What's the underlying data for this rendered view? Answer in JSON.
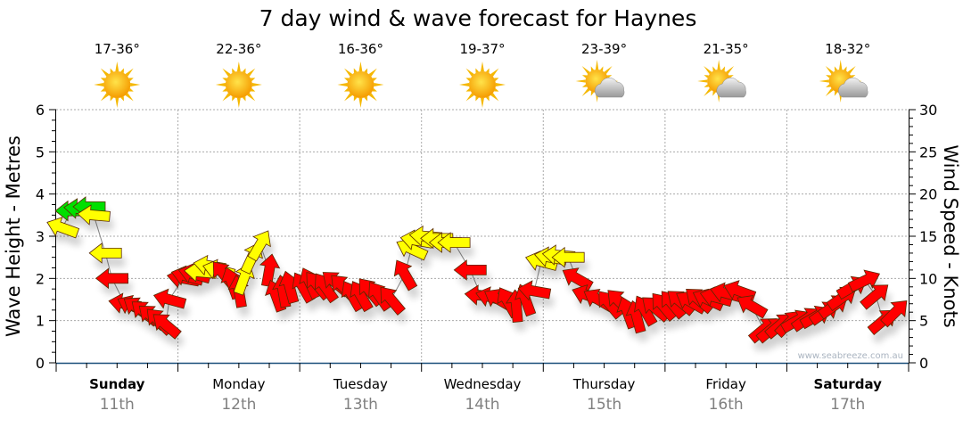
{
  "chart_data": {
    "type": "scatter",
    "title": "7 day wind & wave forecast for Haynes",
    "ylabel": "Wave Height - Metres",
    "y2label": "Wind Speed - Knots",
    "ylim": [
      0,
      6
    ],
    "y2lim": [
      0,
      30
    ],
    "yticks": [
      "0",
      "1",
      "2",
      "3",
      "4",
      "5",
      "6"
    ],
    "y2ticks": [
      "0",
      "5",
      "10",
      "15",
      "20",
      "25",
      "30"
    ],
    "watermark": "www.seabreeze.com.au",
    "colors": {
      "G": "#00e000",
      "Y": "#ffff00",
      "R": "#ff0000"
    },
    "days": [
      {
        "name": "Sunday",
        "date": "11th",
        "bold": true,
        "temp": "17-36°",
        "icon": "sun-icon"
      },
      {
        "name": "Monday",
        "date": "12th",
        "bold": false,
        "temp": "22-36°",
        "icon": "sun-icon"
      },
      {
        "name": "Tuesday",
        "date": "13th",
        "bold": false,
        "temp": "16-36°",
        "icon": "sun-icon"
      },
      {
        "name": "Wednesday",
        "date": "14th",
        "bold": false,
        "temp": "19-37°",
        "icon": "sun-icon"
      },
      {
        "name": "Thursday",
        "date": "15th",
        "bold": false,
        "temp": "23-39°",
        "icon": "partly-cloudy-icon"
      },
      {
        "name": "Friday",
        "date": "16th",
        "bold": false,
        "temp": "21-35°",
        "icon": "partly-cloudy-icon"
      },
      {
        "name": "Saturday",
        "date": "17th",
        "bold": true,
        "temp": "18-32°",
        "icon": "partly-cloudy-icon"
      }
    ],
    "points_fields": [
      "hour",
      "wave_m",
      "arrow_direction_deg",
      "color"
    ],
    "points": [
      [
        1.2,
        3.2,
        160,
        "Y"
      ],
      [
        3,
        3.6,
        180,
        "G"
      ],
      [
        4.7,
        3.65,
        175,
        "G"
      ],
      [
        6.5,
        3.7,
        180,
        "G"
      ],
      [
        7.4,
        3.5,
        175,
        "Y"
      ],
      [
        9.7,
        2.6,
        180,
        "Y"
      ],
      [
        11,
        2.0,
        180,
        "R"
      ],
      [
        13.5,
        1.4,
        170,
        "R"
      ],
      [
        15,
        1.35,
        155,
        "R"
      ],
      [
        16,
        1.3,
        145,
        "R"
      ],
      [
        17.4,
        1.2,
        140,
        "R"
      ],
      [
        18.8,
        1.1,
        140,
        "R"
      ],
      [
        20.2,
        1.0,
        135,
        "R"
      ],
      [
        21.6,
        0.9,
        140,
        "R"
      ],
      [
        22.3,
        1.5,
        165,
        "R"
      ],
      [
        25,
        2.0,
        170,
        "R"
      ],
      [
        25.8,
        2.05,
        165,
        "R"
      ],
      [
        27.2,
        2.1,
        165,
        "R"
      ],
      [
        28.4,
        2.15,
        175,
        "Y"
      ],
      [
        30.2,
        2.3,
        170,
        "Y"
      ],
      [
        32,
        2.2,
        165,
        "Y"
      ],
      [
        33,
        2.1,
        130,
        "R"
      ],
      [
        34.6,
        1.9,
        110,
        "R"
      ],
      [
        36,
        1.7,
        100,
        "R"
      ],
      [
        37,
        2.0,
        70,
        "Y"
      ],
      [
        38.6,
        2.5,
        65,
        "Y"
      ],
      [
        40.2,
        2.8,
        60,
        "Y"
      ],
      [
        42,
        2.2,
        80,
        "R"
      ],
      [
        43.3,
        1.6,
        110,
        "R"
      ],
      [
        44.7,
        1.7,
        100,
        "R"
      ],
      [
        46,
        1.8,
        105,
        "R"
      ],
      [
        48.6,
        1.8,
        120,
        "R"
      ],
      [
        50,
        1.9,
        115,
        "R"
      ],
      [
        51.4,
        1.85,
        130,
        "R"
      ],
      [
        53,
        1.8,
        125,
        "R"
      ],
      [
        55,
        1.9,
        140,
        "R"
      ],
      [
        56.5,
        1.8,
        135,
        "R"
      ],
      [
        58.3,
        1.6,
        120,
        "R"
      ],
      [
        60,
        1.6,
        120,
        "R"
      ],
      [
        61.8,
        1.7,
        130,
        "R"
      ],
      [
        63.6,
        1.6,
        125,
        "R"
      ],
      [
        66,
        1.5,
        130,
        "R"
      ],
      [
        68.7,
        2.1,
        120,
        "R"
      ],
      [
        70,
        2.7,
        155,
        "Y"
      ],
      [
        71,
        2.9,
        170,
        "Y"
      ],
      [
        72.8,
        3.0,
        175,
        "Y"
      ],
      [
        75,
        2.95,
        180,
        "Y"
      ],
      [
        76.7,
        2.85,
        180,
        "Y"
      ],
      [
        78.4,
        2.85,
        180,
        "Y"
      ],
      [
        81.6,
        2.2,
        180,
        "R"
      ],
      [
        83.7,
        1.6,
        175,
        "R"
      ],
      [
        85.8,
        1.55,
        165,
        "R"
      ],
      [
        87.2,
        1.5,
        150,
        "R"
      ],
      [
        89,
        1.45,
        120,
        "R"
      ],
      [
        90.7,
        1.35,
        95,
        "R"
      ],
      [
        92.5,
        1.5,
        110,
        "R"
      ],
      [
        94.2,
        1.7,
        170,
        "R"
      ],
      [
        95.6,
        2.4,
        165,
        "Y"
      ],
      [
        97.4,
        2.5,
        170,
        "Y"
      ],
      [
        99,
        2.55,
        175,
        "Y"
      ],
      [
        100.9,
        2.5,
        180,
        "Y"
      ],
      [
        102.6,
        2.0,
        150,
        "R"
      ],
      [
        104.7,
        1.6,
        160,
        "R"
      ],
      [
        106.8,
        1.5,
        150,
        "R"
      ],
      [
        109,
        1.4,
        130,
        "R"
      ],
      [
        111,
        1.45,
        135,
        "R"
      ],
      [
        112.6,
        1.2,
        110,
        "R"
      ],
      [
        114.4,
        1.1,
        105,
        "R"
      ],
      [
        116,
        1.25,
        120,
        "R"
      ],
      [
        118,
        1.3,
        140,
        "R"
      ],
      [
        119.6,
        1.35,
        130,
        "R"
      ],
      [
        121.4,
        1.4,
        130,
        "R"
      ],
      [
        123,
        1.45,
        140,
        "R"
      ],
      [
        125,
        1.45,
        150,
        "R"
      ],
      [
        126.6,
        1.5,
        140,
        "R"
      ],
      [
        128.4,
        1.5,
        155,
        "R"
      ],
      [
        130,
        1.55,
        165,
        "R"
      ],
      [
        132,
        1.65,
        165,
        "R"
      ],
      [
        134.6,
        1.7,
        160,
        "R"
      ],
      [
        137,
        1.35,
        150,
        "R"
      ],
      [
        139.5,
        0.8,
        40,
        "R"
      ],
      [
        141,
        0.8,
        40,
        "R"
      ],
      [
        142.7,
        0.9,
        40,
        "R"
      ],
      [
        144.5,
        0.95,
        45,
        "R"
      ],
      [
        146,
        1.0,
        30,
        "R"
      ],
      [
        148,
        1.05,
        35,
        "R"
      ],
      [
        149.8,
        1.1,
        30,
        "R"
      ],
      [
        151.5,
        1.2,
        35,
        "R"
      ],
      [
        153.3,
        1.35,
        35,
        "R"
      ],
      [
        155,
        1.55,
        35,
        "R"
      ],
      [
        157,
        1.8,
        30,
        "R"
      ],
      [
        159.4,
        1.95,
        25,
        "R"
      ],
      [
        161.5,
        1.6,
        40,
        "R"
      ],
      [
        163,
        1.0,
        40,
        "R"
      ],
      [
        165.4,
        1.2,
        45,
        "R"
      ]
    ]
  }
}
